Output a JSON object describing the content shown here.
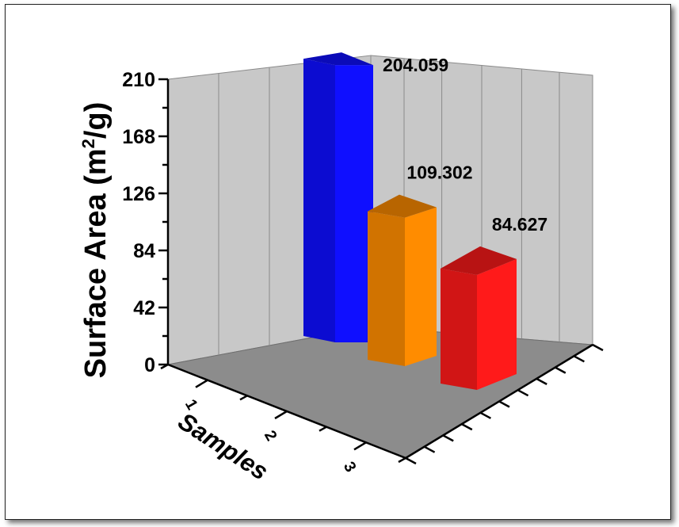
{
  "chart_data": {
    "type": "bar",
    "style": "3d",
    "categories": [
      "1",
      "2",
      "3"
    ],
    "values": [
      204.059,
      109.302,
      84.627
    ],
    "data_labels": [
      "204.059",
      "109.302",
      "84.627"
    ],
    "title": "",
    "xlabel": "Samples",
    "ylabel_main": "Surface Area (m",
    "ylabel_sup": "2",
    "ylabel_tail": "/g)",
    "ylim": [
      0,
      210
    ],
    "yticks": [
      "0",
      "42",
      "84",
      "126",
      "168",
      "210"
    ],
    "grid": true,
    "colors": [
      "#0f0fff",
      "#ff8c00",
      "#ff1a1a"
    ]
  }
}
